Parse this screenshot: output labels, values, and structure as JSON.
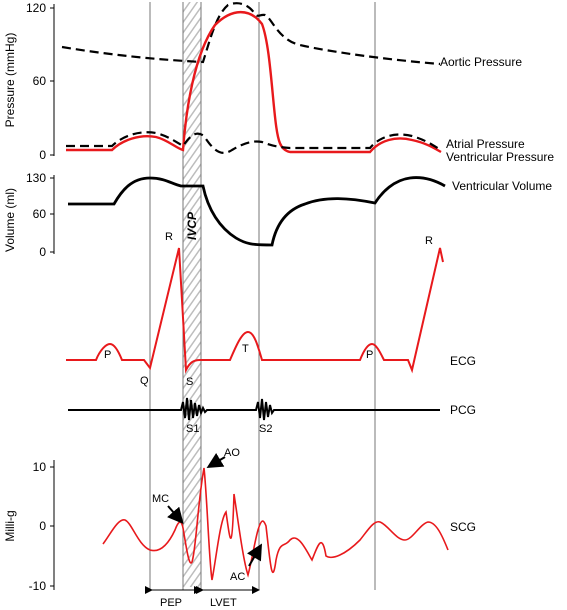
{
  "colors": {
    "red": "#e8191c",
    "black": "#000000",
    "grid": "#777777",
    "hatch": "#bdbdbd"
  },
  "pressure": {
    "ylabel": "Pressure (mmHg)",
    "ticks": [
      "120",
      "60",
      "0"
    ],
    "aortic_label": "Aortic Pressure",
    "atrial_label": "Atrial Pressure",
    "ventricular_label": "Ventricular Pressure"
  },
  "volume": {
    "ylabel": "Volume (ml)",
    "ticks": [
      "130",
      "60",
      "0"
    ],
    "label": "Ventricular Volume"
  },
  "ivcp_label": "IVCP",
  "ecg": {
    "label": "ECG",
    "waves": {
      "p1": "P",
      "q": "Q",
      "r1": "R",
      "s": "S",
      "t": "T",
      "p2": "P",
      "r2": "R"
    }
  },
  "pcg": {
    "label": "PCG",
    "s1": "S1",
    "s2": "S2"
  },
  "scg": {
    "label": "SCG",
    "ylabel": "Milli-g",
    "ticks": [
      "10",
      "0",
      "-10"
    ],
    "mc": "MC",
    "ao": "AO",
    "ac": "AC"
  },
  "intervals": {
    "pep": "PEP",
    "lvet": "LVET"
  }
}
